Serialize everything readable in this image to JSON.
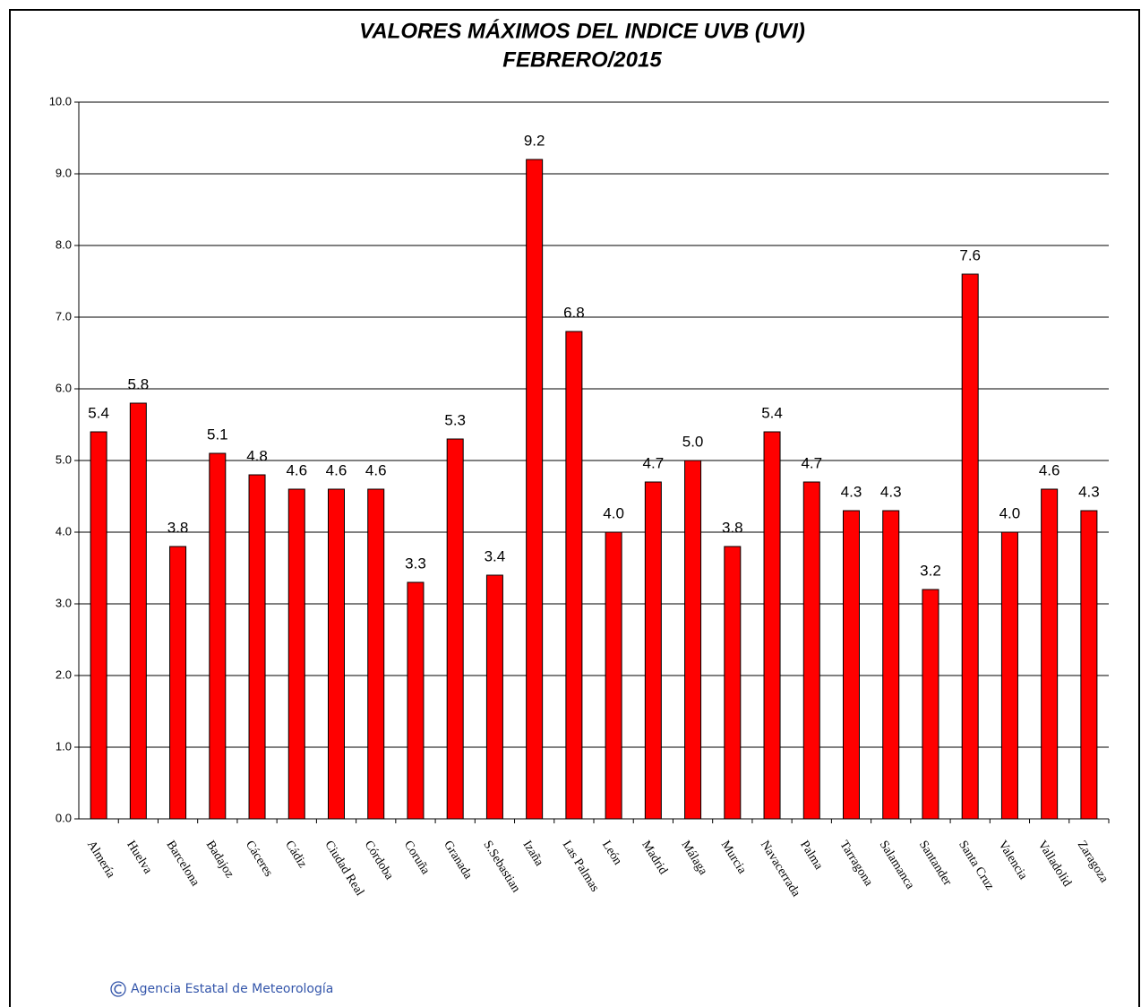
{
  "chart_data": {
    "type": "bar",
    "title": "VALORES MÁXIMOS DEL INDICE UVB (UVI)",
    "subtitle": "FEBRERO/2015",
    "categories": [
      "Almería",
      "Huelva",
      "Barcelona",
      "Badajoz",
      "Cáceres",
      "Cádiz",
      "Ciudad Real",
      "Córdoba",
      "Coruña",
      "Granada",
      "S.Sebastian",
      "Izaña",
      "Las Palmas",
      "León",
      "Madrid",
      "Málaga",
      "Murcia",
      "Navacerrada",
      "Palma",
      "Tarragona",
      "Salamanca",
      "Santander",
      "Santa Cruz",
      "Valencia",
      "Valladolid",
      "Zaragoza"
    ],
    "values": [
      5.4,
      5.8,
      3.8,
      5.1,
      4.8,
      4.6,
      4.6,
      4.6,
      3.3,
      5.3,
      3.4,
      9.2,
      6.8,
      4.0,
      4.7,
      5.0,
      3.8,
      5.4,
      4.7,
      4.3,
      4.3,
      3.2,
      7.6,
      4.0,
      4.6,
      4.3
    ],
    "value_labels": [
      "5.4",
      "5.8",
      "3.8",
      "5.1",
      "4.8",
      "4.6",
      "4.6",
      "4.6",
      "3.3",
      "5.3",
      "3.4",
      "9.2",
      "6.8",
      "4.0",
      "4.7",
      "5.0",
      "3.8",
      "5.4",
      "4.7",
      "4.3",
      "4.3",
      "3.2",
      "7.6",
      "4.0",
      "4.6",
      "4.3"
    ],
    "color": "#ff0000",
    "ylim": [
      0,
      10
    ],
    "yticks": [
      {
        "value": 0,
        "label": "0.0"
      },
      {
        "value": 1,
        "label": "1.0"
      },
      {
        "value": 2,
        "label": "2.0"
      },
      {
        "value": 3,
        "label": "3.0"
      },
      {
        "value": 4,
        "label": "4.0"
      },
      {
        "value": 5,
        "label": "5.0"
      },
      {
        "value": 6,
        "label": "6.0"
      },
      {
        "value": 7,
        "label": "7.0"
      },
      {
        "value": 8,
        "label": "8.0"
      },
      {
        "value": 9,
        "label": "9.0"
      },
      {
        "value": 10,
        "label": "10.0"
      }
    ],
    "grid": true,
    "footer": "Agencia Estatal de Meteorología"
  }
}
